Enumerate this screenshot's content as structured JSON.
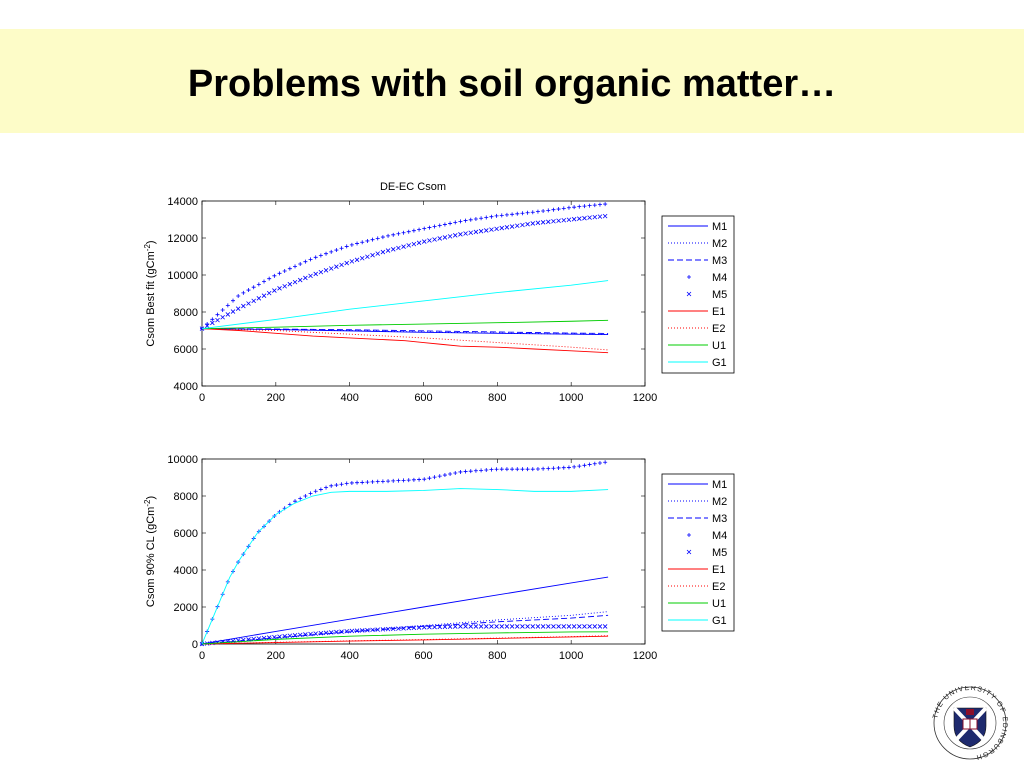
{
  "slide": {
    "title": "Problems with soil organic matter…",
    "logo_text": "THE UNIVERSITY OF EDINBURGH"
  },
  "colors": {
    "title_band": "#fdfcc8",
    "M": "#0000ff",
    "E": "#ff0000",
    "U": "#00cc00",
    "G": "#00ffff",
    "crest": "#8b0f2b"
  },
  "chart_data": [
    {
      "type": "line",
      "title": "DE-EC  Csom",
      "xlabel": "",
      "ylabel": "Csom    Best fit (gCm-2)",
      "ylabel_parts": [
        "Csom    Best fit (gCm",
        "-2",
        ")"
      ],
      "xlim": [
        0,
        1200
      ],
      "ylim": [
        4000,
        14000
      ],
      "xticks": [
        0,
        200,
        400,
        600,
        800,
        1000,
        1200
      ],
      "yticks": [
        4000,
        6000,
        8000,
        10000,
        12000,
        14000
      ],
      "grid": false,
      "legend_position": "right",
      "series": [
        {
          "name": "M1",
          "style": "solid",
          "color": "#0000ff",
          "x": [
            0,
            200,
            400,
            600,
            800,
            1000,
            1100
          ],
          "y": [
            7100,
            7050,
            6980,
            6900,
            6850,
            6800,
            6780
          ]
        },
        {
          "name": "M2",
          "style": "dotted",
          "color": "#0000ff",
          "x": [
            0,
            200,
            400,
            600,
            800,
            1000,
            1100
          ],
          "y": [
            7100,
            7060,
            7000,
            6920,
            6860,
            6810,
            6790
          ]
        },
        {
          "name": "M3",
          "style": "dashed",
          "color": "#0000ff",
          "x": [
            0,
            200,
            400,
            600,
            800,
            1000,
            1100
          ],
          "y": [
            7100,
            7080,
            7040,
            6980,
            6920,
            6860,
            6840
          ]
        },
        {
          "name": "M4",
          "style": "plus",
          "color": "#0000ff",
          "x": [
            0,
            100,
            200,
            300,
            400,
            500,
            600,
            700,
            800,
            900,
            1000,
            1100
          ],
          "y": [
            7100,
            8900,
            10000,
            10900,
            11600,
            12100,
            12500,
            12900,
            13200,
            13400,
            13650,
            13850
          ]
        },
        {
          "name": "M5",
          "style": "cross",
          "color": "#0000ff",
          "x": [
            0,
            100,
            200,
            300,
            400,
            500,
            600,
            700,
            800,
            900,
            1000,
            1100
          ],
          "y": [
            7100,
            8200,
            9200,
            10000,
            10700,
            11300,
            11800,
            12200,
            12500,
            12800,
            13000,
            13200
          ]
        },
        {
          "name": "E1",
          "style": "solid",
          "color": "#ff0000",
          "x": [
            0,
            100,
            200,
            300,
            400,
            500,
            550,
            600,
            650,
            700,
            800,
            900,
            1000,
            1100
          ],
          "y": [
            7100,
            7000,
            6850,
            6700,
            6600,
            6500,
            6450,
            6350,
            6250,
            6150,
            6100,
            6000,
            5900,
            5800
          ]
        },
        {
          "name": "E2",
          "style": "dotted",
          "color": "#ff0000",
          "x": [
            0,
            200,
            400,
            600,
            800,
            1000,
            1100
          ],
          "y": [
            7100,
            7000,
            6800,
            6600,
            6350,
            6100,
            5950
          ]
        },
        {
          "name": "U1",
          "style": "solid",
          "color": "#00cc00",
          "x": [
            0,
            200,
            400,
            600,
            800,
            1000,
            1100
          ],
          "y": [
            7100,
            7180,
            7280,
            7350,
            7420,
            7500,
            7550
          ]
        },
        {
          "name": "G1",
          "style": "solid",
          "color": "#00ffff",
          "x": [
            0,
            200,
            400,
            600,
            800,
            1000,
            1100
          ],
          "y": [
            7100,
            7600,
            8150,
            8600,
            9050,
            9450,
            9700
          ]
        }
      ]
    },
    {
      "type": "line",
      "title": "",
      "xlabel": "",
      "ylabel": "Csom    90% CL (gCm-2)",
      "ylabel_parts": [
        "Csom    90% CL (gCm",
        "-2",
        ")"
      ],
      "xlim": [
        0,
        1200
      ],
      "ylim": [
        0,
        10000
      ],
      "xticks": [
        0,
        200,
        400,
        600,
        800,
        1000,
        1200
      ],
      "yticks": [
        0,
        2000,
        4000,
        6000,
        8000,
        10000
      ],
      "grid": false,
      "legend_position": "right",
      "series": [
        {
          "name": "M1",
          "style": "solid",
          "color": "#0000ff",
          "x": [
            0,
            200,
            400,
            600,
            800,
            1000,
            1100
          ],
          "y": [
            0,
            680,
            1340,
            2000,
            2650,
            3300,
            3620
          ]
        },
        {
          "name": "M2",
          "style": "dotted",
          "color": "#0000ff",
          "x": [
            0,
            200,
            400,
            600,
            800,
            1000,
            1100
          ],
          "y": [
            0,
            350,
            700,
            1000,
            1300,
            1550,
            1750
          ]
        },
        {
          "name": "M3",
          "style": "dashed",
          "color": "#0000ff",
          "x": [
            0,
            200,
            400,
            600,
            800,
            1000,
            1100
          ],
          "y": [
            0,
            330,
            650,
            950,
            1200,
            1400,
            1550
          ]
        },
        {
          "name": "M4",
          "style": "plus",
          "color": "#0000ff",
          "x": [
            0,
            25,
            50,
            75,
            100,
            150,
            200,
            250,
            300,
            350,
            400,
            500,
            600,
            700,
            800,
            900,
            1000,
            1100
          ],
          "y": [
            0,
            1200,
            2400,
            3600,
            4500,
            6000,
            7000,
            7700,
            8200,
            8550,
            8700,
            8800,
            8900,
            9300,
            9450,
            9450,
            9550,
            9850
          ]
        },
        {
          "name": "M5",
          "style": "cross",
          "color": "#0000ff",
          "x": [
            0,
            100,
            200,
            300,
            400,
            500,
            600,
            700,
            800,
            900,
            1000,
            1100
          ],
          "y": [
            0,
            200,
            380,
            550,
            700,
            800,
            900,
            950,
            950,
            950,
            950,
            950
          ]
        },
        {
          "name": "E1",
          "style": "solid",
          "color": "#ff0000",
          "x": [
            0,
            200,
            400,
            600,
            800,
            1000,
            1100
          ],
          "y": [
            0,
            80,
            160,
            220,
            300,
            380,
            420
          ]
        },
        {
          "name": "E2",
          "style": "dotted",
          "color": "#ff0000",
          "x": [
            0,
            200,
            400,
            600,
            800,
            1000,
            1100
          ],
          "y": [
            0,
            90,
            170,
            240,
            320,
            400,
            450
          ]
        },
        {
          "name": "U1",
          "style": "solid",
          "color": "#00cc00",
          "x": [
            0,
            200,
            400,
            600,
            800,
            1000,
            1100
          ],
          "y": [
            0,
            250,
            420,
            530,
            600,
            650,
            660
          ]
        },
        {
          "name": "G1",
          "style": "solid",
          "color": "#00ffff",
          "x": [
            0,
            25,
            50,
            75,
            100,
            150,
            200,
            250,
            300,
            350,
            400,
            500,
            600,
            700,
            800,
            900,
            1000,
            1100
          ],
          "y": [
            0,
            1200,
            2400,
            3600,
            4500,
            6000,
            7000,
            7600,
            8000,
            8200,
            8250,
            8250,
            8300,
            8400,
            8350,
            8250,
            8250,
            8350
          ]
        }
      ]
    }
  ]
}
